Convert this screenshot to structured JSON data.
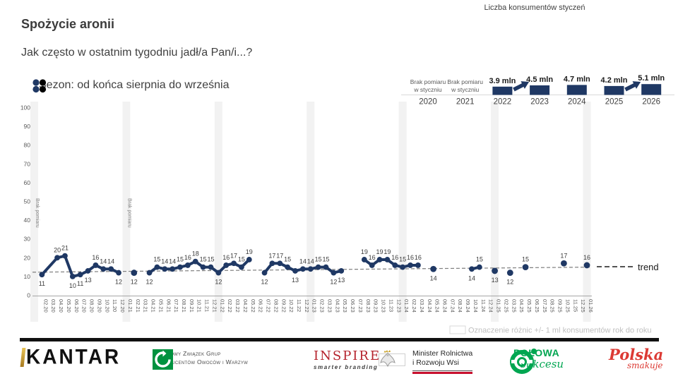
{
  "header": {
    "title": "Spożycie aronii",
    "subtitle": "Jak często w ostatnim tygodniu jadł/a Pan/i...?",
    "season_legend": "Sezon: od końca sierpnia do września",
    "legend_dot_colors": [
      "#1f3864",
      "#000000",
      "#1f3864",
      "#000000"
    ]
  },
  "mini_chart": {
    "title": "Liczba konsumentów styczeń",
    "no_data_lines": [
      "Brak pomiaru",
      "w styczniu"
    ],
    "columns": [
      {
        "year": "2020",
        "no_data": true
      },
      {
        "year": "2021",
        "no_data": true
      },
      {
        "year": "2022",
        "value": 3.9,
        "label": "3.9 mln"
      },
      {
        "year": "2023",
        "value": 4.5,
        "label": "4.5 mln",
        "arrow_from_prev": true
      },
      {
        "year": "2024",
        "value": 4.7,
        "label": "4.7 mln"
      },
      {
        "year": "2025",
        "value": 4.2,
        "label": "4.2 mln"
      },
      {
        "year": "2026",
        "value": 5.1,
        "label": "5.1 mln",
        "arrow_from_prev": true
      }
    ],
    "bar_color": "#1f3864"
  },
  "chart_data": {
    "type": "line",
    "ylim": [
      0,
      100
    ],
    "y_ticks": [
      100,
      90,
      80,
      70,
      60,
      50,
      40,
      30,
      20,
      10,
      0
    ],
    "line_color": "#1f3864",
    "band_color": "#f2f2f2",
    "no_measure_text": "Brak pomiaru",
    "bands": [
      {
        "month": "01.20",
        "no_measure_label": true
      },
      {
        "month": "01.21",
        "no_measure_label": true
      },
      {
        "month": "01.22",
        "no_measure_label": false
      },
      {
        "month": "01.23",
        "no_measure_label": false
      },
      {
        "month": "01.24",
        "no_measure_label": false
      },
      {
        "month": "01.25",
        "no_measure_label": false
      },
      {
        "month": "01.26",
        "no_measure_label": false
      }
    ],
    "x_labels": [
      "02.20",
      "03.20",
      "04.20",
      "05.20",
      "06.20",
      "07.20",
      "08.20",
      "09.20",
      "10.20",
      "11.20",
      "12.20",
      "01.21",
      "02.21",
      "03.21",
      "04.21",
      "05.21",
      "06.21",
      "07.21",
      "08.21",
      "09.21",
      "10.21",
      "11.21",
      "12.21",
      "01.22",
      "02.22",
      "03.22",
      "04.22",
      "05.22",
      "06.22",
      "07.22",
      "08.22",
      "09.22",
      "10.22",
      "11.22",
      "12.22",
      "01.23",
      "02.23",
      "03.23",
      "04.23",
      "05.23",
      "06.23",
      "07.23",
      "08.23",
      "09.23",
      "10.23",
      "11.23",
      "12.23",
      "01.24",
      "02.24",
      "03.24",
      "04.24",
      "05.24",
      "06.24",
      "07.24",
      "08.24",
      "09.24",
      "10.24",
      "11.24",
      "12.24",
      "01.25",
      "02.25",
      "03.25",
      "04.25",
      "05.25",
      "06.25",
      "07.25",
      "08.25",
      "09.25",
      "10.25",
      "11.25",
      "12.25",
      "01.26"
    ],
    "points": [
      {
        "m": "02.20",
        "v": 11,
        "p": "b",
        "s": 1
      },
      {
        "m": "04.20",
        "v": 20,
        "p": "a",
        "s": 1
      },
      {
        "m": "05.20",
        "v": 21,
        "p": "a",
        "s": 1
      },
      {
        "m": "06.20",
        "v": 10,
        "p": "b",
        "s": 1
      },
      {
        "m": "07.20",
        "v": 11,
        "p": "b",
        "s": 1
      },
      {
        "m": "08.20",
        "v": 13,
        "p": "b",
        "s": 1
      },
      {
        "m": "09.20",
        "v": 16,
        "p": "a",
        "s": 1
      },
      {
        "m": "10.20",
        "v": 14,
        "p": "a",
        "s": 1
      },
      {
        "m": "11.20",
        "v": 14,
        "p": "a",
        "s": 1
      },
      {
        "m": "12.20",
        "v": 12,
        "p": "b",
        "s": 1
      },
      {
        "m": "02.21",
        "v": 12,
        "p": "b",
        "s": 2
      },
      {
        "m": "04.21",
        "v": 12,
        "p": "b",
        "s": 3
      },
      {
        "m": "05.21",
        "v": 15,
        "p": "a",
        "s": 3
      },
      {
        "m": "06.21",
        "v": 14,
        "p": "a",
        "s": 3
      },
      {
        "m": "07.21",
        "v": 14,
        "p": "a",
        "s": 3
      },
      {
        "m": "08.21",
        "v": 15,
        "p": "a",
        "s": 3
      },
      {
        "m": "09.21",
        "v": 16,
        "p": "a",
        "s": 3
      },
      {
        "m": "10.21",
        "v": 18,
        "p": "a",
        "s": 3
      },
      {
        "m": "11.21",
        "v": 15,
        "p": "a",
        "s": 3
      },
      {
        "m": "12.21",
        "v": 15,
        "p": "a",
        "s": 3
      },
      {
        "m": "01.22",
        "v": 12,
        "p": "b",
        "s": 3
      },
      {
        "m": "02.22",
        "v": 16,
        "p": "a",
        "s": 3
      },
      {
        "m": "03.22",
        "v": 17,
        "p": "a",
        "s": 3
      },
      {
        "m": "04.22",
        "v": 15,
        "p": "a",
        "s": 3
      },
      {
        "m": "05.22",
        "v": 19,
        "p": "a",
        "s": 3
      },
      {
        "m": "07.22",
        "v": 12,
        "p": "b",
        "s": 4
      },
      {
        "m": "08.22",
        "v": 17,
        "p": "a",
        "s": 4
      },
      {
        "m": "09.22",
        "v": 17,
        "p": "a",
        "s": 4
      },
      {
        "m": "10.22",
        "v": 15,
        "p": "a",
        "s": 4
      },
      {
        "m": "11.22",
        "v": 13,
        "p": "b",
        "s": 4
      },
      {
        "m": "12.22",
        "v": 14,
        "p": "a",
        "s": 4
      },
      {
        "m": "01.23",
        "v": 14,
        "p": "a",
        "s": 4
      },
      {
        "m": "02.23",
        "v": 15,
        "p": "a",
        "s": 4
      },
      {
        "m": "03.23",
        "v": 15,
        "p": "a",
        "s": 4
      },
      {
        "m": "04.23",
        "v": 12,
        "p": "b",
        "s": 4
      },
      {
        "m": "05.23",
        "v": 13,
        "p": "b",
        "s": 4
      },
      {
        "m": "08.23",
        "v": 19,
        "p": "a",
        "s": 5
      },
      {
        "m": "09.23",
        "v": 16,
        "p": "a",
        "s": 5
      },
      {
        "m": "10.23",
        "v": 19,
        "p": "a",
        "s": 5
      },
      {
        "m": "11.23",
        "v": 19,
        "p": "a",
        "s": 5
      },
      {
        "m": "12.23",
        "v": 16,
        "p": "a",
        "s": 5
      },
      {
        "m": "01.24",
        "v": 15,
        "p": "a",
        "s": 5
      },
      {
        "m": "02.24",
        "v": 16,
        "p": "a",
        "s": 5
      },
      {
        "m": "03.24",
        "v": 16,
        "p": "a",
        "s": 5
      },
      {
        "m": "05.24",
        "v": 14,
        "p": "b",
        "s": 6
      },
      {
        "m": "10.24",
        "v": 14,
        "p": "b",
        "s": 7
      },
      {
        "m": "11.24",
        "v": 15,
        "p": "a",
        "s": 7
      },
      {
        "m": "01.25",
        "v": 13,
        "p": "b",
        "s": 8
      },
      {
        "m": "03.25",
        "v": 12,
        "p": "b",
        "s": 9
      },
      {
        "m": "05.25",
        "v": 15,
        "p": "a",
        "s": 10
      },
      {
        "m": "10.25",
        "v": 17,
        "p": "a",
        "s": 11
      },
      {
        "m": "01.26",
        "v": 16,
        "p": "a",
        "s": 12
      }
    ],
    "trend": {
      "label": "trend",
      "start_value": 12.3,
      "end_value": 15.0
    }
  },
  "legend_diff": {
    "text": "Oznaczenie różnic +/- 1 ml konsumentów rok do roku"
  },
  "footer": {
    "kantar": "KANTAR",
    "kz_line1": "Krajowy Związek Grup",
    "kz_line2": "Producentów Owoców i Warzyw",
    "inspire": "INSPIRE",
    "inspire_sub": "smarter branding",
    "ministry_line1": "Minister Rolnictwa",
    "ministry_line2": "i Rozwoju Wsi",
    "polowa_line1": "POŁOWA",
    "polowa_line2": "sukcesu",
    "polska_line1": "Polska",
    "polska_line2": "smakuje"
  }
}
